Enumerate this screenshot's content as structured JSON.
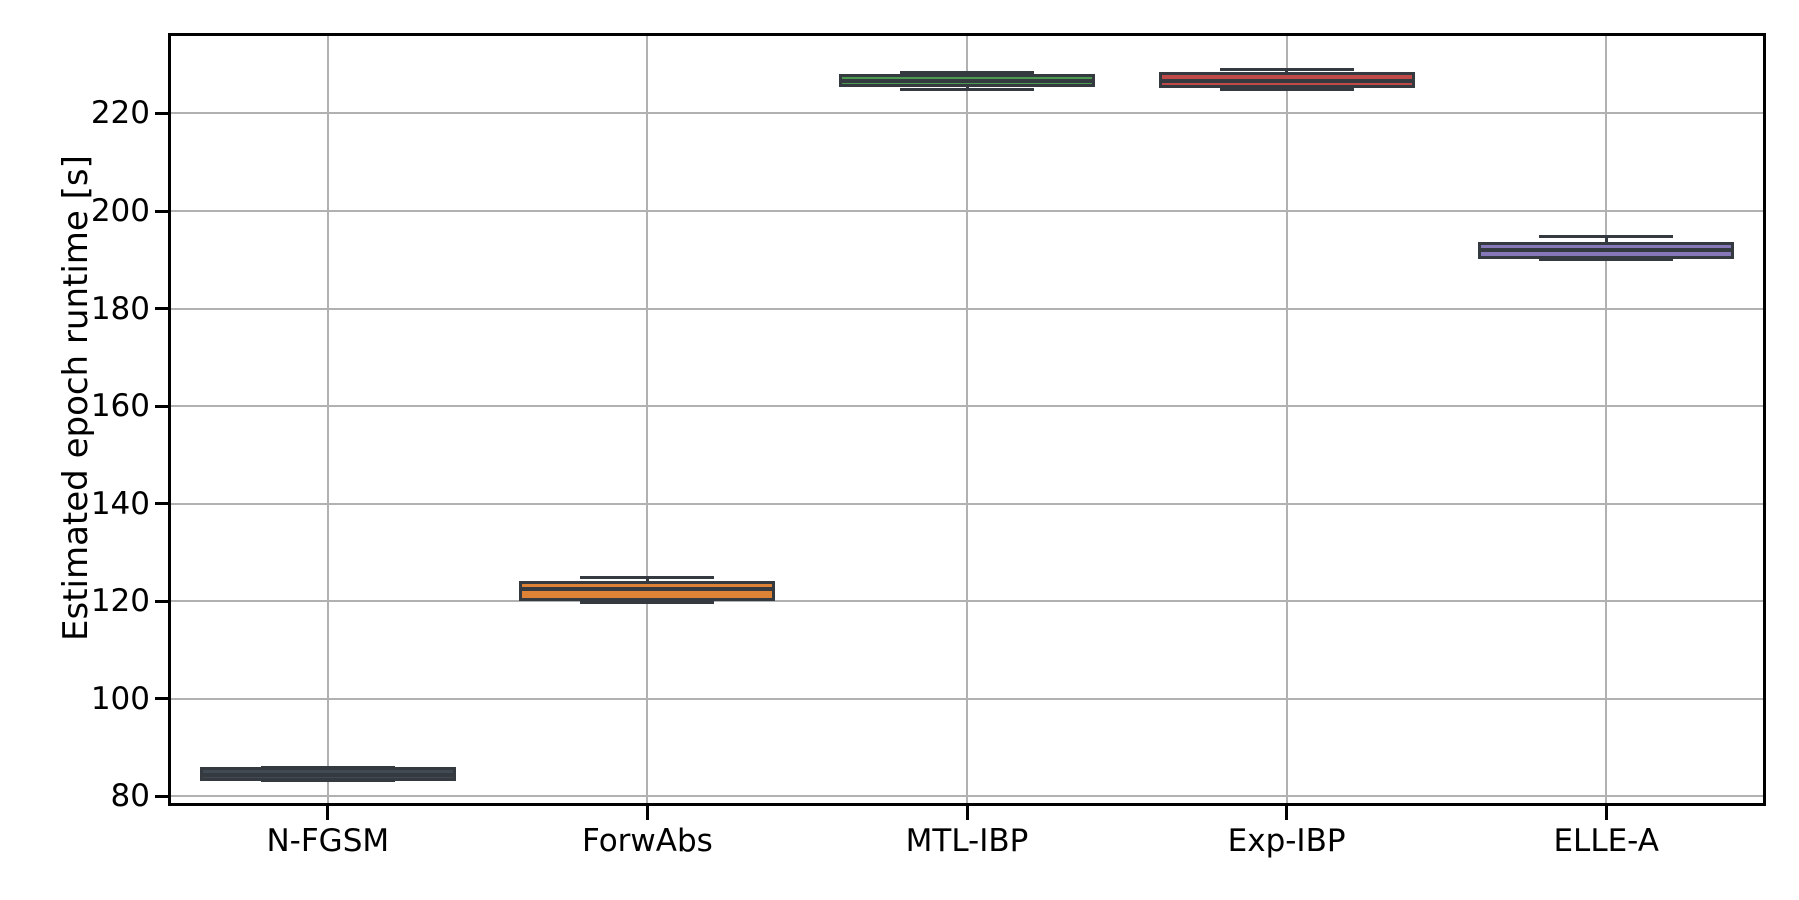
{
  "chart_data": {
    "type": "boxplot",
    "title": "",
    "xlabel": "",
    "ylabel": "Estimated epoch runtime [s]",
    "categories": [
      "N-FGSM",
      "ForwAbs",
      "MTL-IBP",
      "Exp-IBP",
      "ELLE-A"
    ],
    "y_ticks": [
      80,
      100,
      120,
      140,
      160,
      180,
      200,
      220
    ],
    "ylim": [
      78.0,
      236.5
    ],
    "grid": true,
    "legend": "none",
    "series": [
      {
        "name": "N-FGSM",
        "whislo": 83.2,
        "q1": 83.7,
        "median": 84.3,
        "q3": 85.3,
        "whishi": 85.9,
        "fill": "#414a53"
      },
      {
        "name": "ForwAbs",
        "whislo": 119.8,
        "q1": 120.7,
        "median": 122.4,
        "q3": 123.5,
        "whishi": 124.9,
        "fill": "#de8335"
      },
      {
        "name": "MTL-IBP",
        "whislo": 224.9,
        "q1": 226.0,
        "median": 226.7,
        "q3": 227.5,
        "whishi": 228.4,
        "fill": "#4a9b50"
      },
      {
        "name": "Exp-IBP",
        "whislo": 224.9,
        "q1": 225.8,
        "median": 226.7,
        "q3": 227.9,
        "whishi": 229.1,
        "fill": "#bf4a47"
      },
      {
        "name": "ELLE-A",
        "whislo": 190.0,
        "q1": 190.7,
        "median": 192.1,
        "q3": 193.1,
        "whishi": 194.8,
        "fill": "#8677b8"
      }
    ],
    "colors": {
      "box_edge": "#343a40",
      "grid": "#b1b1b1",
      "spine": "#000000",
      "background": "#ffffff"
    }
  }
}
